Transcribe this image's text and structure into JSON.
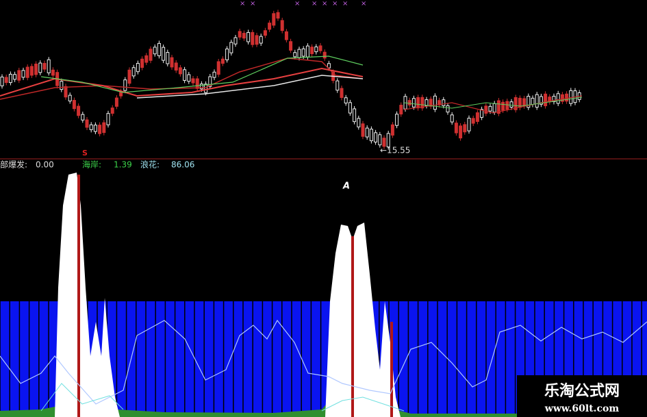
{
  "indicators": [
    {
      "label": "部爆发:",
      "value": "0.00"
    },
    {
      "label": "海岸:",
      "value": "1.39"
    },
    {
      "label": "浪花:",
      "value": "86.06"
    }
  ],
  "price_label": "←15.55",
  "signals": [
    "S",
    "A"
  ],
  "watermark": {
    "title": "乐淘公式网",
    "url": "www.60lt.com"
  }
}
